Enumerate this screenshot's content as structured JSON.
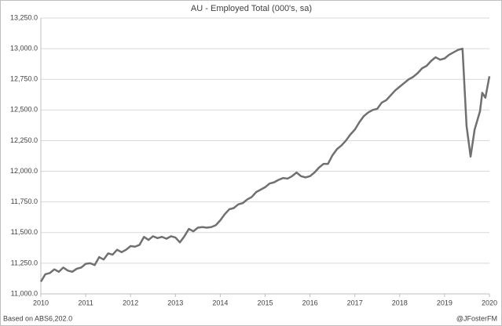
{
  "chart_data": {
    "type": "line",
    "title": "AU - Employed Total (000's, sa)",
    "source": "Based on ABS6,202.0",
    "credit": "@JFosterFM",
    "x": [
      2010.0,
      2010.1,
      2010.2,
      2010.3,
      2010.4,
      2010.5,
      2010.6,
      2010.7,
      2010.8,
      2010.9,
      2011.0,
      2011.1,
      2011.2,
      2011.3,
      2011.4,
      2011.5,
      2011.6,
      2011.7,
      2011.8,
      2011.9,
      2012.0,
      2012.1,
      2012.2,
      2012.3,
      2012.4,
      2012.5,
      2012.6,
      2012.7,
      2012.8,
      2012.9,
      2013.0,
      2013.1,
      2013.2,
      2013.3,
      2013.4,
      2013.5,
      2013.6,
      2013.7,
      2013.8,
      2013.9,
      2014.0,
      2014.1,
      2014.2,
      2014.3,
      2014.4,
      2014.5,
      2014.6,
      2014.7,
      2014.8,
      2014.9,
      2015.0,
      2015.1,
      2015.2,
      2015.3,
      2015.4,
      2015.5,
      2015.6,
      2015.7,
      2015.8,
      2015.9,
      2016.0,
      2016.1,
      2016.2,
      2016.3,
      2016.4,
      2016.5,
      2016.6,
      2016.7,
      2016.8,
      2016.9,
      2017.0,
      2017.1,
      2017.2,
      2017.3,
      2017.4,
      2017.5,
      2017.6,
      2017.7,
      2017.8,
      2017.9,
      2018.0,
      2018.1,
      2018.2,
      2018.3,
      2018.4,
      2018.5,
      2018.6,
      2018.7,
      2018.8,
      2018.9,
      2019.0,
      2019.1,
      2019.2,
      2019.3,
      2019.4,
      2019.49,
      2019.58,
      2019.67,
      2019.79,
      2019.84,
      2019.91,
      2020.0
    ],
    "series": [
      {
        "color": "#707070",
        "values": [
          11100,
          11160,
          11170,
          11200,
          11180,
          11215,
          11190,
          11180,
          11205,
          11215,
          11245,
          11250,
          11235,
          11300,
          11280,
          11330,
          11320,
          11360,
          11340,
          11360,
          11390,
          11385,
          11400,
          11465,
          11440,
          11470,
          11455,
          11465,
          11450,
          11470,
          11460,
          11420,
          11470,
          11530,
          11510,
          11540,
          11545,
          11540,
          11545,
          11560,
          11600,
          11650,
          11690,
          11700,
          11730,
          11740,
          11770,
          11790,
          11830,
          11850,
          11870,
          11900,
          11910,
          11930,
          11945,
          11940,
          11960,
          11990,
          11960,
          11950,
          11960,
          11990,
          12030,
          12060,
          12060,
          12130,
          12180,
          12210,
          12250,
          12300,
          12340,
          12400,
          12450,
          12480,
          12500,
          12510,
          12560,
          12580,
          12620,
          12660,
          12690,
          12720,
          12750,
          12770,
          12800,
          12840,
          12860,
          12900,
          12930,
          12910,
          12920,
          12950,
          12970,
          12990,
          13000,
          12370,
          12120,
          12340,
          12490,
          12640,
          12600,
          12775
        ]
      }
    ],
    "xlim": [
      2010,
      2020
    ],
    "xticks": [
      2010,
      2011,
      2012,
      2013,
      2014,
      2015,
      2016,
      2017,
      2018,
      2019,
      2020
    ],
    "ylim": [
      11000,
      13250
    ],
    "yticks": [
      {
        "value": 11000,
        "label": "11,000.0"
      },
      {
        "value": 11250,
        "label": "11,250.0"
      },
      {
        "value": 11500,
        "label": "11,500.0"
      },
      {
        "value": 11750,
        "label": "11,750.0"
      },
      {
        "value": 12000,
        "label": "12,000.0"
      },
      {
        "value": 12250,
        "label": "12,250.0"
      },
      {
        "value": 12500,
        "label": "12,500.0"
      },
      {
        "value": 12750,
        "label": "12,750.0"
      },
      {
        "value": 13000,
        "label": "13,000.0"
      },
      {
        "value": 13250,
        "label": "13,250.0"
      }
    ],
    "grid": true
  }
}
